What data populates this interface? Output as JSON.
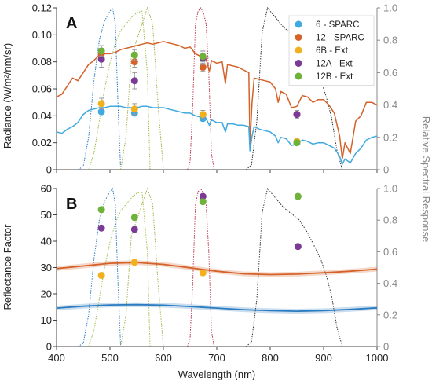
{
  "figure": {
    "x_axis_label": "Wavelength (nm)",
    "right_axis_label": "Relative Spectral Response"
  },
  "colors": {
    "sparc6": "#3fa9e0",
    "sparc12": "#d4622a",
    "ext6B": "#f2b01e",
    "ext12A": "#7b3a96",
    "ext12B": "#6fb23a",
    "resp_blue": "#2b7bbf",
    "resp_green": "#9bbf4a",
    "resp_olive": "#a8b04a",
    "resp_red": "#c0304a",
    "resp_black": "#333333",
    "axis": "#888888"
  },
  "chart_data": [
    {
      "panel": "A",
      "type": "line",
      "ylabel": "Radiance (W/m²/nm/sr)",
      "y2label": "Relative Spectral Response",
      "xlim": [
        400,
        1000
      ],
      "ylim": [
        0,
        0.12
      ],
      "y2lim": [
        0,
        1.0
      ],
      "x_ticks": [
        "400",
        "500",
        "600",
        "700",
        "800",
        "900",
        "1000"
      ],
      "y_ticks": [
        "0",
        "0.02",
        "0.04",
        "0.06",
        "0.08",
        "0.10",
        "0.12"
      ],
      "y2_ticks": [
        "0",
        "0.2",
        "0.4",
        "0.6",
        "0.8",
        "1.0"
      ],
      "legend": {
        "position": "top-right",
        "entries": [
          {
            "label": "6 - SPARC",
            "color": "#3fa9e0"
          },
          {
            "label": "12 - SPARC",
            "color": "#d4622a"
          },
          {
            "label": "6B - Ext",
            "color": "#f2b01e"
          },
          {
            "label": "12A - Ext",
            "color": "#7b3a96"
          },
          {
            "label": "12B - Ext",
            "color": "#6fb23a"
          }
        ]
      },
      "series": [
        {
          "color": "#d4622a",
          "x": [
            400,
            410,
            420,
            430,
            440,
            450,
            460,
            470,
            480,
            490,
            500,
            510,
            520,
            530,
            540,
            550,
            560,
            570,
            580,
            590,
            600,
            610,
            620,
            630,
            640,
            650,
            660,
            670,
            680,
            686,
            690,
            700,
            710,
            716,
            720,
            730,
            740,
            750,
            760,
            762,
            766,
            770,
            780,
            790,
            800,
            810,
            815,
            820,
            830,
            840,
            850,
            860,
            870,
            880,
            890,
            900,
            910,
            920,
            930,
            935,
            940,
            950,
            960,
            970,
            980,
            990,
            1000
          ],
          "y": [
            0.054,
            0.056,
            0.062,
            0.068,
            0.066,
            0.072,
            0.078,
            0.081,
            0.085,
            0.086,
            0.086,
            0.087,
            0.089,
            0.09,
            0.091,
            0.092,
            0.093,
            0.094,
            0.093,
            0.094,
            0.095,
            0.094,
            0.093,
            0.092,
            0.09,
            0.091,
            0.086,
            0.084,
            0.082,
            0.073,
            0.081,
            0.079,
            0.08,
            0.064,
            0.078,
            0.077,
            0.076,
            0.074,
            0.072,
            0.018,
            0.05,
            0.068,
            0.067,
            0.066,
            0.065,
            0.06,
            0.05,
            0.058,
            0.056,
            0.046,
            0.047,
            0.055,
            0.054,
            0.05,
            0.052,
            0.052,
            0.048,
            0.042,
            0.025,
            0.008,
            0.02,
            0.012,
            0.036,
            0.04,
            0.05,
            0.05,
            0.048
          ]
        },
        {
          "color": "#3fa9e0",
          "x": [
            400,
            410,
            420,
            430,
            440,
            450,
            460,
            470,
            480,
            490,
            500,
            510,
            520,
            530,
            540,
            550,
            560,
            570,
            580,
            590,
            600,
            610,
            620,
            630,
            640,
            650,
            660,
            670,
            680,
            686,
            690,
            700,
            710,
            716,
            720,
            730,
            740,
            750,
            760,
            762,
            766,
            770,
            780,
            790,
            800,
            810,
            815,
            820,
            830,
            840,
            850,
            860,
            870,
            880,
            890,
            900,
            910,
            920,
            930,
            935,
            940,
            950,
            960,
            970,
            980,
            990,
            1000
          ],
          "y": [
            0.028,
            0.027,
            0.03,
            0.032,
            0.035,
            0.041,
            0.044,
            0.045,
            0.046,
            0.046,
            0.047,
            0.047,
            0.047,
            0.046,
            0.046,
            0.046,
            0.047,
            0.047,
            0.046,
            0.046,
            0.046,
            0.045,
            0.044,
            0.043,
            0.042,
            0.042,
            0.04,
            0.039,
            0.038,
            0.033,
            0.037,
            0.035,
            0.035,
            0.028,
            0.034,
            0.034,
            0.033,
            0.033,
            0.032,
            0.014,
            0.025,
            0.032,
            0.03,
            0.029,
            0.028,
            0.025,
            0.02,
            0.024,
            0.023,
            0.018,
            0.019,
            0.022,
            0.021,
            0.019,
            0.02,
            0.02,
            0.018,
            0.016,
            0.01,
            0.004,
            0.008,
            0.005,
            0.012,
            0.016,
            0.022,
            0.024,
            0.025
          ]
        }
      ],
      "points": [
        {
          "name": "6 - SPARC",
          "color": "#3fa9e0",
          "x": [
            484,
            546,
            674,
            850
          ],
          "y": [
            0.043,
            0.042,
            0.038,
            0.02
          ],
          "err": [
            0,
            0,
            0,
            0
          ]
        },
        {
          "name": "12 - SPARC",
          "color": "#d4622a",
          "x": [
            484,
            546,
            674,
            850
          ],
          "y": [
            0.086,
            0.08,
            0.076,
            0.041
          ],
          "err": [
            0.004,
            0.004,
            0.003,
            0.002
          ]
        },
        {
          "name": "6B - Ext",
          "color": "#f2b01e",
          "x": [
            484,
            546,
            674,
            850
          ],
          "y": [
            0.049,
            0.045,
            0.041,
            0.021
          ],
          "err": [
            0.004,
            0.004,
            0.003,
            0
          ]
        },
        {
          "name": "12A - Ext",
          "color": "#7b3a96",
          "x": [
            484,
            546,
            674,
            850
          ],
          "y": [
            0.082,
            0.066,
            0.083,
            0.041
          ],
          "err": [
            0.006,
            0.006,
            0.005,
            0.003
          ]
        },
        {
          "name": "12B - Ext",
          "color": "#6fb23a",
          "x": [
            484,
            546,
            674,
            850
          ],
          "y": [
            0.088,
            0.085,
            0.084,
            0.02
          ],
          "err": [
            0.004,
            0.004,
            0.004,
            0
          ]
        }
      ]
    },
    {
      "panel": "B",
      "type": "line",
      "ylabel": "Reflectance Factor",
      "y2label": "Relative Spectral Response",
      "xlim": [
        400,
        1000
      ],
      "ylim": [
        0,
        60
      ],
      "y2lim": [
        0,
        1.0
      ],
      "x_ticks": [
        "400",
        "500",
        "600",
        "700",
        "800",
        "900",
        "1000"
      ],
      "y_ticks": [
        "0",
        "10",
        "20",
        "30",
        "40",
        "50",
        "60"
      ],
      "y2_ticks": [
        "0",
        "0.2",
        "0.4",
        "0.6",
        "0.8",
        "1.0"
      ],
      "series": [
        {
          "color": "#d4622a",
          "x": [
            400,
            450,
            500,
            550,
            600,
            650,
            700,
            750,
            800,
            850,
            900,
            950,
            1000
          ],
          "y": [
            29.6,
            30.6,
            31.6,
            31.9,
            31.2,
            29.9,
            28.6,
            27.6,
            27.3,
            27.5,
            28.0,
            28.6,
            29.4
          ]
        },
        {
          "color": "#2b7bbf",
          "x": [
            400,
            450,
            500,
            550,
            600,
            650,
            700,
            750,
            800,
            850,
            900,
            950,
            1000
          ],
          "y": [
            14.6,
            15.3,
            15.8,
            15.9,
            15.7,
            15.2,
            14.6,
            14.0,
            13.6,
            13.4,
            13.6,
            14.1,
            14.7
          ]
        }
      ],
      "points": [
        {
          "name": "6B - Ext",
          "color": "#f2b01e",
          "x": [
            484,
            546,
            674
          ],
          "y": [
            27,
            32,
            28
          ]
        },
        {
          "name": "12A - Ext",
          "color": "#7b3a96",
          "x": [
            484,
            546,
            674,
            852
          ],
          "y": [
            45,
            44.5,
            57,
            38
          ]
        },
        {
          "name": "12B - Ext",
          "color": "#6fb23a",
          "x": [
            484,
            546,
            674,
            852
          ],
          "y": [
            52,
            49,
            55,
            57
          ]
        }
      ]
    }
  ],
  "spectral_response": [
    {
      "color": "#2b7bbf",
      "x": [
        440,
        450,
        460,
        470,
        480,
        490,
        500,
        505,
        510,
        515,
        520
      ],
      "y": [
        0,
        0.02,
        0.2,
        0.55,
        0.8,
        0.92,
        0.98,
        1.0,
        0.9,
        0.4,
        0
      ]
    },
    {
      "color": "#9bbf4a",
      "x": [
        460,
        470,
        480,
        490,
        500,
        510,
        520,
        530,
        540,
        550,
        560,
        570,
        575
      ],
      "y": [
        0,
        0.1,
        0.3,
        0.5,
        0.66,
        0.78,
        0.86,
        0.9,
        0.94,
        0.97,
        0.98,
        0.6,
        0
      ]
    },
    {
      "color": "#a8b04a",
      "x": [
        520,
        530,
        540,
        550,
        560,
        570,
        580,
        590,
        600
      ],
      "y": [
        0,
        0.2,
        0.7,
        0.8,
        0.9,
        1.0,
        0.9,
        0.4,
        0
      ]
    },
    {
      "color": "#c0304a",
      "x": [
        645,
        650,
        655,
        660,
        665,
        670,
        675,
        680,
        685,
        690,
        695
      ],
      "y": [
        0,
        0.05,
        0.4,
        0.9,
        0.98,
        1.0,
        0.97,
        0.9,
        0.6,
        0.1,
        0
      ]
    },
    {
      "color": "#333333",
      "x": [
        755,
        765,
        775,
        785,
        795,
        805,
        815,
        825,
        840,
        855,
        870,
        885,
        895,
        905,
        915,
        925,
        935
      ],
      "y": [
        0,
        0.03,
        0.3,
        0.85,
        1.0,
        0.96,
        0.92,
        0.88,
        0.84,
        0.8,
        0.72,
        0.62,
        0.55,
        0.45,
        0.32,
        0.12,
        0
      ]
    }
  ]
}
